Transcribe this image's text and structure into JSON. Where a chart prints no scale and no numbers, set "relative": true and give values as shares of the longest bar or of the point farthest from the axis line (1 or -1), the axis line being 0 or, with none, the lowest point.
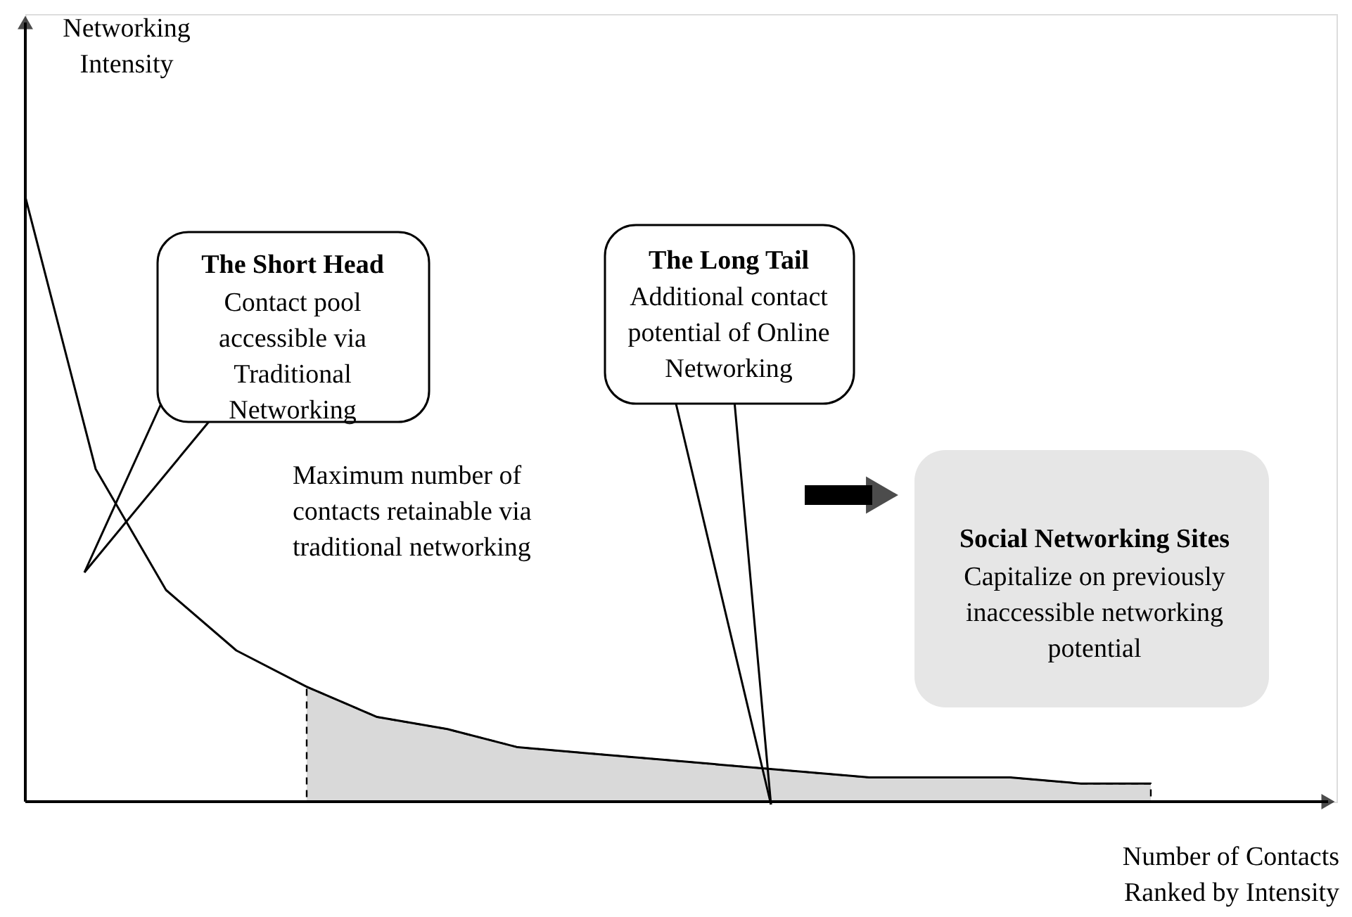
{
  "chart_data": {
    "type": "line",
    "relative": true,
    "xlabel": "Number of Contacts Ranked by Intensity",
    "ylabel": "Networking Intensity",
    "categories": [
      null,
      null,
      null,
      null,
      null,
      null,
      null,
      null,
      null,
      null,
      null,
      null,
      null,
      null,
      null,
      null,
      null
    ],
    "series": [
      {
        "type": "area",
        "color": "#d9d9d9",
        "line_style": "dashed",
        "values": [
          null,
          null,
          null,
          null,
          0.19,
          0.14,
          0.12,
          0.09,
          0.08,
          0.07,
          0.06,
          0.05,
          0.04,
          0.04,
          0.04,
          0.03,
          0.03
        ]
      },
      {
        "color": "#000000",
        "values": [
          1,
          0.55,
          0.35,
          0.25,
          0.19,
          0.14,
          0.12,
          0.09,
          0.08,
          0.07,
          0.06,
          0.05,
          0.04,
          0.04,
          0.04,
          0.03,
          0.03
        ]
      }
    ],
    "annotations": [
      "The Short Head",
      "Contact pool accessible via Traditional Networking",
      "The Long Tail",
      "Additional contact potential of Online Networking",
      "Maximum number of contacts retainable via traditional networking",
      "Social Networking Sites",
      "Capitalize on previously inaccessible networking potential"
    ],
    "marker": "none"
  }
}
